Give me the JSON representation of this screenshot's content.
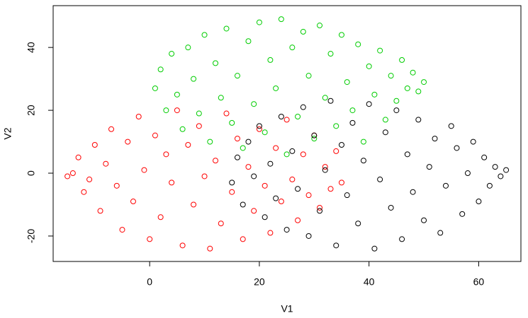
{
  "chart_data": {
    "type": "scatter",
    "x_label": "V1",
    "y_label": "V2",
    "xlim": [
      -17.6,
      67.7
    ],
    "ylim": [
      -28.1,
      53.3
    ],
    "xticks": [
      0,
      20,
      40,
      60
    ],
    "yticks": [
      -20,
      0,
      20,
      40
    ],
    "series": [
      {
        "color": "#ff0000",
        "x": [
          -14,
          -13,
          -12,
          -10,
          -9,
          -8,
          -7,
          -6,
          -5,
          -4,
          -3,
          -2,
          -1,
          0,
          1,
          2,
          3,
          4,
          5,
          6,
          7,
          8,
          9,
          10,
          11,
          12,
          13,
          14,
          15,
          16,
          17,
          18,
          19,
          20,
          21,
          22,
          23,
          24,
          25,
          26,
          27,
          28,
          29,
          30,
          31,
          32,
          33,
          34,
          35,
          -15,
          -11
        ],
        "values": [
          0,
          5,
          -6,
          9,
          -12,
          3,
          14,
          -4,
          -18,
          10,
          -9,
          18,
          1,
          -21,
          12,
          -14,
          6,
          -3,
          20,
          -23,
          9,
          -10,
          15,
          -1,
          -24,
          4,
          -16,
          19,
          -6,
          11,
          -21,
          2,
          -12,
          14,
          -4,
          -19,
          8,
          -9,
          17,
          -2,
          -15,
          6,
          -7,
          12,
          -11,
          2,
          -5,
          7,
          -3,
          -1,
          -2
        ]
      },
      {
        "color": "#00cd00",
        "x": [
          1,
          2,
          3,
          4,
          5,
          6,
          7,
          8,
          9,
          10,
          11,
          12,
          13,
          14,
          15,
          16,
          17,
          18,
          19,
          20,
          21,
          22,
          23,
          24,
          25,
          26,
          27,
          28,
          29,
          30,
          31,
          32,
          33,
          34,
          35,
          36,
          37,
          38,
          39,
          40,
          41,
          42,
          43,
          44,
          45,
          46,
          47,
          48,
          49,
          50
        ],
        "values": [
          27,
          33,
          20,
          38,
          25,
          14,
          40,
          30,
          19,
          44,
          10,
          35,
          24,
          46,
          16,
          31,
          8,
          42,
          22,
          48,
          13,
          36,
          27,
          49,
          6,
          40,
          18,
          45,
          31,
          11,
          47,
          24,
          38,
          15,
          44,
          29,
          20,
          41,
          10,
          34,
          25,
          39,
          17,
          31,
          23,
          36,
          27,
          32,
          26,
          29
        ]
      },
      {
        "color": "#000000",
        "x": [
          15,
          16,
          17,
          18,
          19,
          20,
          21,
          22,
          23,
          24,
          25,
          26,
          27,
          28,
          29,
          30,
          31,
          32,
          33,
          34,
          35,
          36,
          37,
          38,
          39,
          40,
          41,
          42,
          43,
          44,
          45,
          46,
          47,
          48,
          49,
          50,
          51,
          52,
          53,
          54,
          55,
          56,
          57,
          58,
          59,
          60,
          61,
          62,
          63,
          64,
          65
        ],
        "values": [
          -3,
          5,
          -10,
          10,
          -1,
          15,
          -14,
          3,
          -8,
          18,
          -18,
          7,
          -5,
          21,
          -20,
          12,
          -12,
          1,
          23,
          -23,
          9,
          -7,
          16,
          -16,
          4,
          22,
          -24,
          -2,
          13,
          -11,
          20,
          -21,
          6,
          -6,
          17,
          -15,
          2,
          11,
          -19,
          -4,
          15,
          8,
          -13,
          0,
          10,
          -9,
          5,
          -4,
          2,
          -1,
          1
        ]
      }
    ]
  }
}
